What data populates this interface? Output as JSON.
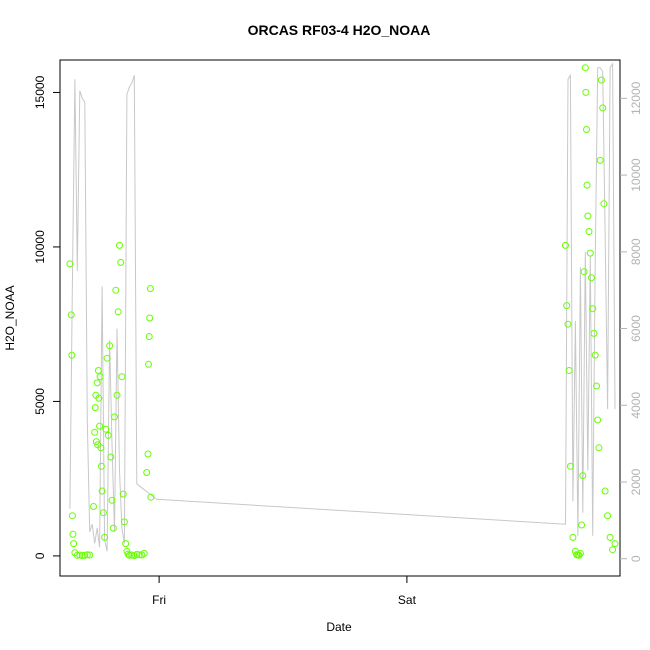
{
  "chart_data": {
    "type": "scatter",
    "title": "ORCAS RF03-4 H2O_NOAA",
    "xlabel": "Date",
    "ylabel": "H2O_NOAA",
    "x_unit": "days",
    "x_ticks": [
      {
        "value": 1.0,
        "label": "Fri"
      },
      {
        "value": 2.0,
        "label": "Sat"
      }
    ],
    "xlim": [
      0.6,
      2.86
    ],
    "ylim": [
      -650,
      16050
    ],
    "y_ticks": [
      0,
      5000,
      10000,
      15000
    ],
    "y2lim": [
      -450,
      13000
    ],
    "y2_ticks": [
      0,
      2000,
      4000,
      6000,
      8000,
      10000,
      12000
    ],
    "grid": false,
    "colors": {
      "points": "#66ff00",
      "line": "#c8c8c8",
      "axis": "#000000",
      "axis_right": "#b3b3b3"
    },
    "series": [
      {
        "marker": "open-circle",
        "axis": "left",
        "x": [
          0.64,
          0.645,
          0.648,
          0.65,
          0.652,
          0.655,
          0.66,
          0.67,
          0.68,
          0.69,
          0.7,
          0.71,
          0.72,
          0.735,
          0.74,
          0.742,
          0.745,
          0.747,
          0.75,
          0.752,
          0.755,
          0.757,
          0.76,
          0.762,
          0.765,
          0.767,
          0.77,
          0.775,
          0.78,
          0.785,
          0.79,
          0.795,
          0.8,
          0.805,
          0.81,
          0.815,
          0.82,
          0.825,
          0.83,
          0.835,
          0.84,
          0.845,
          0.85,
          0.855,
          0.86,
          0.865,
          0.87,
          0.875,
          0.88,
          0.89,
          0.9,
          0.91,
          0.92,
          0.93,
          0.94,
          0.95,
          0.955,
          0.957,
          0.96,
          0.962,
          0.965,
          0.967,
          2.64,
          2.645,
          2.65,
          2.655,
          2.66,
          2.67,
          2.68,
          2.685,
          2.69,
          2.695,
          2.7,
          2.705,
          2.71,
          2.715,
          2.72,
          2.722,
          2.725,
          2.727,
          2.73,
          2.735,
          2.74,
          2.745,
          2.75,
          2.755,
          2.76,
          2.765,
          2.77,
          2.775,
          2.78,
          2.785,
          2.79,
          2.795,
          2.8,
          2.81,
          2.82,
          2.83,
          2.84
        ],
        "y": [
          9450,
          7800,
          6500,
          1300,
          700,
          400,
          100,
          20,
          30,
          10,
          20,
          40,
          30,
          1600,
          4000,
          4800,
          5200,
          3700,
          5600,
          3600,
          6000,
          5100,
          4200,
          5800,
          3500,
          2900,
          2100,
          1400,
          600,
          4100,
          6400,
          3900,
          6800,
          3200,
          1800,
          900,
          4500,
          8600,
          5200,
          7900,
          10050,
          9500,
          5800,
          2000,
          1100,
          400,
          150,
          60,
          20,
          30,
          10,
          50,
          40,
          30,
          80,
          2700,
          3300,
          6200,
          7100,
          7700,
          8650,
          1900,
          10050,
          8100,
          7500,
          6000,
          2900,
          600,
          150,
          40,
          30,
          20,
          80,
          1000,
          2600,
          9200,
          15800,
          15000,
          13800,
          12000,
          11000,
          10500,
          9800,
          9000,
          8000,
          7200,
          6500,
          5500,
          4400,
          3500,
          12800,
          15400,
          14500,
          11400,
          2100,
          1300,
          600,
          200,
          400
        ]
      },
      {
        "marker": "line",
        "axis": "right",
        "x": [
          0.64,
          0.65,
          0.66,
          0.67,
          0.68,
          0.69,
          0.7,
          0.71,
          0.72,
          0.73,
          0.74,
          0.75,
          0.76,
          0.77,
          0.78,
          0.79,
          0.8,
          0.81,
          0.82,
          0.83,
          0.84,
          0.85,
          0.86,
          0.87,
          0.88,
          0.89,
          0.9,
          0.91,
          0.92,
          0.93,
          0.94,
          0.95,
          0.96,
          0.97,
          0.98,
          0.99,
          2.64,
          2.65,
          2.66,
          2.67,
          2.68,
          2.69,
          2.7,
          2.71,
          2.72,
          2.73,
          2.74,
          2.75,
          2.76,
          2.77,
          2.78,
          2.79,
          2.8,
          2.81,
          2.82,
          2.83,
          2.84
        ],
        "y": [
          1300,
          7200,
          12500,
          7500,
          12200,
          12000,
          11900,
          3600,
          700,
          900,
          400,
          800,
          300,
          7100,
          500,
          200,
          5700,
          3000,
          700,
          6000,
          2300,
          800,
          400,
          12100,
          12300,
          12400,
          12600,
          1950,
          1900,
          1850,
          1800,
          1750,
          1700,
          1650,
          1600,
          1550,
          900,
          12500,
          12600,
          1500,
          6200,
          600,
          7600,
          1200,
          8000,
          2300,
          7900,
          600,
          7700,
          12800,
          12800,
          12700,
          8500,
          3900,
          12800,
          12900,
          3900
        ]
      }
    ]
  }
}
